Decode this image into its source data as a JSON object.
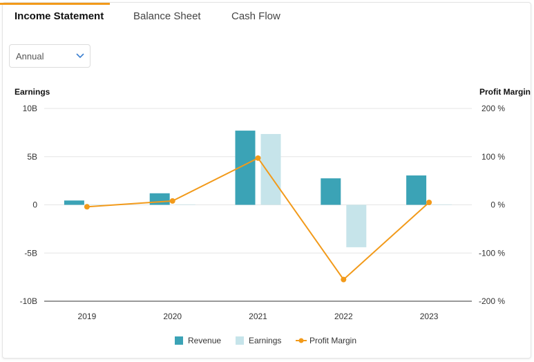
{
  "tabs": [
    {
      "label": "Income Statement",
      "active": true
    },
    {
      "label": "Balance Sheet",
      "active": false
    },
    {
      "label": "Cash Flow",
      "active": false
    }
  ],
  "period_select": {
    "value": "Annual",
    "icon": "chevron-down-icon"
  },
  "colors": {
    "accent": "#f29a1a",
    "revenue": "#3ba3b6",
    "earnings": "#c6e4ea",
    "margin": "#f29a1a"
  },
  "chart_data": {
    "type": "bar",
    "categories": [
      "2019",
      "2020",
      "2021",
      "2022",
      "2023"
    ],
    "left_axis": {
      "title": "Earnings",
      "ticks": [
        "10B",
        "5B",
        "0",
        "-5B",
        "-10B"
      ],
      "range": [
        -10,
        10
      ],
      "unit": "B"
    },
    "right_axis": {
      "title": "Profit Margin",
      "ticks": [
        "200 %",
        "100 %",
        "0 %",
        "-100 %",
        "-200 %"
      ],
      "range": [
        -200,
        200
      ],
      "unit": "%"
    },
    "series": [
      {
        "name": "Revenue",
        "kind": "bar",
        "axis": "left",
        "values": [
          0.45,
          1.2,
          7.7,
          2.75,
          3.05
        ]
      },
      {
        "name": "Earnings",
        "kind": "bar",
        "axis": "left",
        "values": [
          -0.02,
          0.05,
          7.35,
          -4.4,
          0.05
        ]
      },
      {
        "name": "Profit Margin",
        "kind": "line",
        "axis": "right",
        "values": [
          -4,
          8,
          97,
          -155,
          5
        ]
      }
    ],
    "grid": true,
    "legend_position": "bottom-center"
  }
}
